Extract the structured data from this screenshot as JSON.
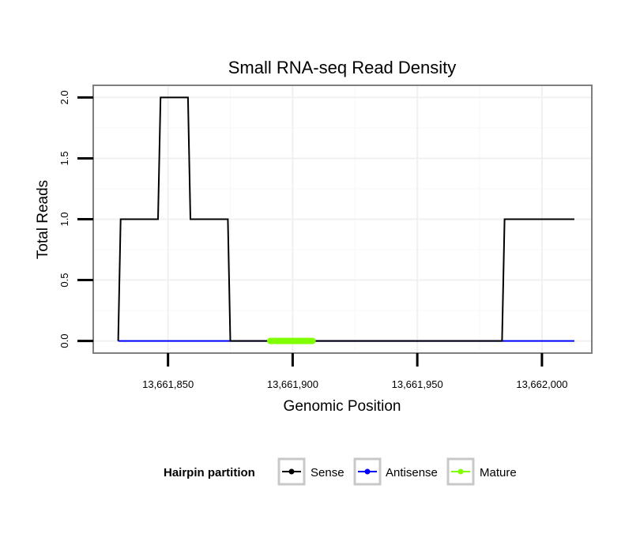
{
  "chart_data": {
    "type": "line",
    "title": "Small RNA-seq Read Density",
    "xlabel": "Genomic Position",
    "ylabel": "Total Reads",
    "xlim": [
      13661820,
      13662020
    ],
    "ylim": [
      -0.1,
      2.1
    ],
    "x_ticks": [
      13661850,
      13661900,
      13661950,
      13662000
    ],
    "x_tick_labels": [
      "13,661,850",
      "13,661,900",
      "13,661,950",
      "13,662,000"
    ],
    "y_ticks": [
      0,
      0.5,
      1,
      1.5,
      2
    ],
    "y_tick_labels": [
      "0.0",
      "0.5",
      "1.0",
      "1.5",
      "2.0"
    ],
    "grid": true,
    "series": [
      {
        "name": "Sense",
        "color": "#000000",
        "x": [
          13661830,
          13661831,
          13661846,
          13661847,
          13661858,
          13661859,
          13661874,
          13661875,
          13661984,
          13661985,
          13662013
        ],
        "y": [
          0,
          1,
          1,
          2,
          2,
          1,
          1,
          0,
          0,
          1,
          1
        ]
      },
      {
        "name": "Antisense",
        "color": "#0000ff",
        "x": [
          13661830,
          13662013
        ],
        "y": [
          0,
          0
        ]
      },
      {
        "name": "Mature",
        "color": "#7fff00",
        "x": [
          13661891,
          13661908
        ],
        "y": [
          0,
          0
        ]
      }
    ],
    "legend": {
      "title": "Hairpin partition",
      "position": "bottom",
      "entries": [
        "Sense",
        "Antisense",
        "Mature"
      ]
    }
  }
}
